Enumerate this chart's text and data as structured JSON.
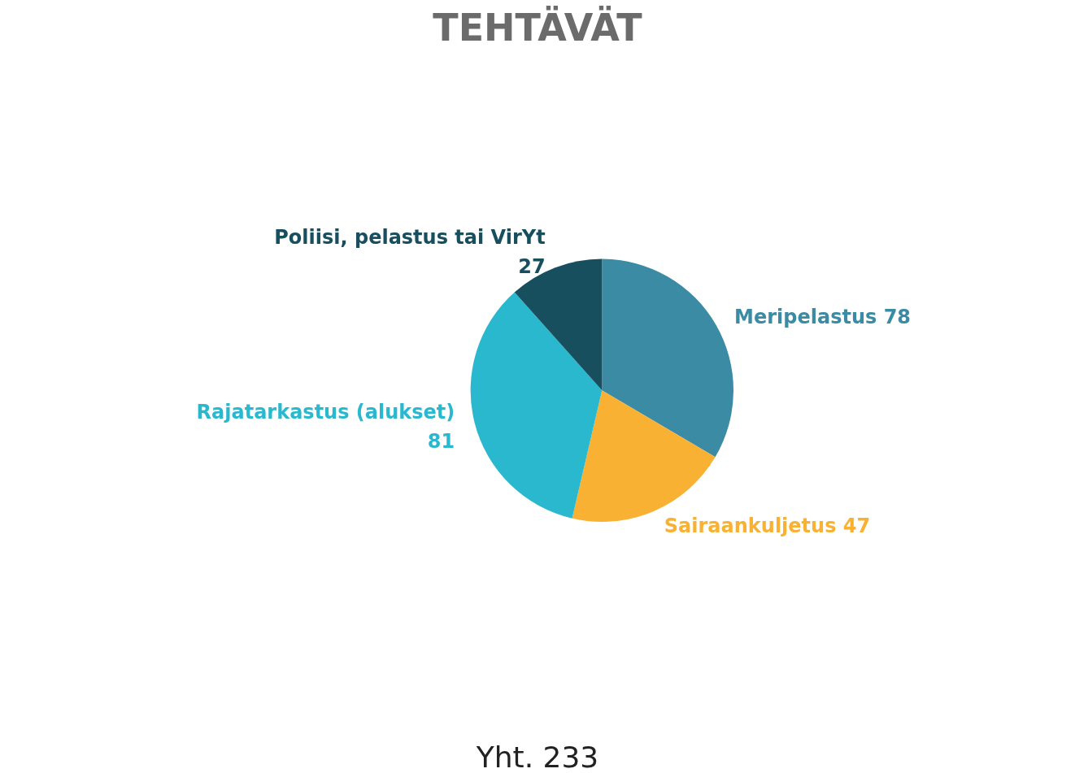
{
  "chart_data": {
    "type": "pie",
    "title": "TEHTÄVÄT",
    "categories": [
      "Meripelastus",
      "Sairaankuljetus",
      "Rajatarkastus (alukset)",
      "Poliisi, pelastus tai VirYt"
    ],
    "values": [
      78,
      47,
      81,
      27
    ],
    "colors": [
      "#3a8ba3",
      "#f8b133",
      "#2ab8cf",
      "#174f5f"
    ],
    "data_labels": true,
    "legend": false,
    "annotations": [
      "Yht. 233"
    ]
  }
}
